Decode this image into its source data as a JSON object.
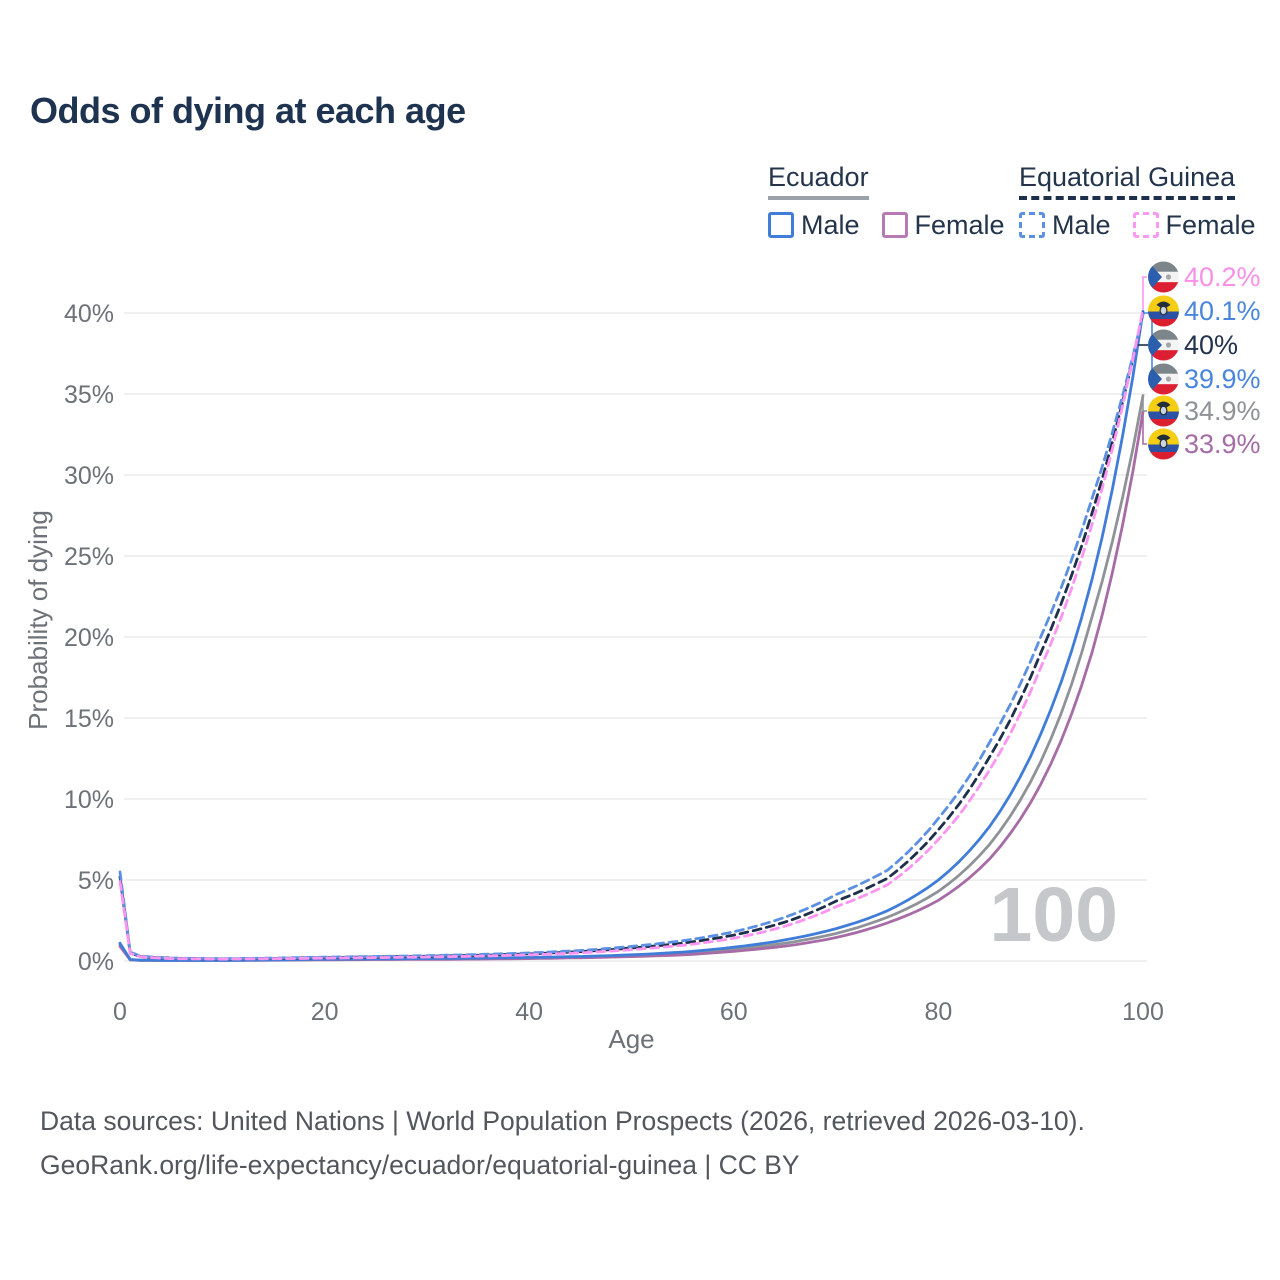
{
  "title": "Odds of dying at each age",
  "legend": {
    "groups": [
      {
        "label": "Ecuador",
        "line_style": "solid",
        "underline_color": "#9aa1a8",
        "items": [
          {
            "label": "Male",
            "color": "#3f7dd8"
          },
          {
            "label": "Female",
            "color": "#b77ab5"
          }
        ]
      },
      {
        "label": "Equatorial Guinea",
        "line_style": "dashed",
        "underline_color": "#1e2f49",
        "items": [
          {
            "label": "Male",
            "color": "#5c90e2"
          },
          {
            "label": "Female",
            "color": "#fc9af2"
          }
        ]
      }
    ]
  },
  "chart_data": {
    "type": "line",
    "title": "Odds of dying at each age",
    "xlabel": "Age",
    "ylabel": "Probability of dying",
    "xlim": [
      0,
      100
    ],
    "ylim_pct": [
      0,
      40
    ],
    "xticks": [
      0,
      20,
      40,
      60,
      80,
      100
    ],
    "yticks_pct": [
      0,
      5,
      10,
      15,
      20,
      25,
      30,
      35,
      40
    ],
    "grid": "horizontal-only",
    "watermark": "100",
    "legend_position": "top-right",
    "ages": [
      0,
      1,
      2,
      5,
      10,
      15,
      20,
      25,
      30,
      35,
      40,
      45,
      50,
      55,
      60,
      65,
      70,
      75,
      80,
      85,
      90,
      95,
      100
    ],
    "series": [
      {
        "id": "ecuador-all",
        "name": "Ecuador",
        "country": "Ecuador",
        "sex": "Both",
        "color": "#8f9397",
        "dash": false,
        "flag": "ecuador",
        "end_label": "34.9%",
        "label_color": "#8f9397",
        "label_row": 4,
        "values_pct": [
          1.0,
          0.08,
          0.045,
          0.035,
          0.035,
          0.06,
          0.09,
          0.11,
          0.13,
          0.15,
          0.19,
          0.24,
          0.33,
          0.47,
          0.72,
          1.1,
          1.7,
          2.7,
          4.3,
          7.2,
          12.3,
          21.2,
          34.9
        ]
      },
      {
        "id": "ecuador-female",
        "name": "Ecuador Female",
        "country": "Ecuador",
        "sex": "Female",
        "color": "#a76ba6",
        "dash": false,
        "flag": "ecuador",
        "end_label": "33.9%",
        "label_color": "#a56ca5",
        "label_row": 5,
        "values_pct": [
          0.9,
          0.07,
          0.04,
          0.03,
          0.03,
          0.05,
          0.07,
          0.09,
          0.1,
          0.12,
          0.15,
          0.2,
          0.27,
          0.38,
          0.6,
          0.92,
          1.45,
          2.35,
          3.75,
          6.3,
          10.9,
          19.0,
          33.9
        ]
      },
      {
        "id": "ecuador-male",
        "name": "Ecuador Male",
        "country": "Ecuador",
        "sex": "Male",
        "color": "#3f7dd8",
        "dash": false,
        "flag": "ecuador",
        "end_label": "40.1%",
        "label_color": "#4a86dc",
        "label_row": 1,
        "values_pct": [
          1.1,
          0.09,
          0.05,
          0.04,
          0.04,
          0.07,
          0.11,
          0.13,
          0.15,
          0.18,
          0.22,
          0.28,
          0.38,
          0.55,
          0.85,
          1.3,
          2.0,
          3.1,
          5.0,
          8.3,
          14.0,
          23.5,
          40.1
        ]
      },
      {
        "id": "equatorial-guinea-all",
        "name": "Equatorial Guinea",
        "country": "Equatorial Guinea",
        "sex": "Both",
        "color": "#1e2f49",
        "dash": true,
        "flag": "equatorial-guinea",
        "end_label": "40%",
        "label_color": "#22334d",
        "label_row": 2,
        "values_pct": [
          5.2,
          0.5,
          0.28,
          0.17,
          0.13,
          0.16,
          0.21,
          0.25,
          0.29,
          0.35,
          0.44,
          0.58,
          0.8,
          1.1,
          1.6,
          2.4,
          3.7,
          5.1,
          8.1,
          12.6,
          19.0,
          27.6,
          40.0
        ]
      },
      {
        "id": "equatorial-guinea-male",
        "name": "Equatorial Guinea Male",
        "country": "Equatorial Guinea",
        "sex": "Male",
        "color": "#5c90e2",
        "dash": true,
        "flag": "equatorial-guinea",
        "end_label": "39.9%",
        "label_color": "#4a86dc",
        "label_row": 3,
        "values_pct": [
          5.5,
          0.55,
          0.3,
          0.18,
          0.14,
          0.18,
          0.24,
          0.28,
          0.33,
          0.4,
          0.5,
          0.65,
          0.9,
          1.25,
          1.8,
          2.7,
          4.1,
          5.6,
          8.8,
          13.5,
          20.0,
          28.5,
          39.9
        ]
      },
      {
        "id": "equatorial-guinea-female",
        "name": "Equatorial Guinea Female",
        "country": "Equatorial Guinea",
        "sex": "Female",
        "color": "#fc95f1",
        "dash": true,
        "flag": "equatorial-guinea",
        "end_label": "40.2%",
        "label_color": "#fa8fe8",
        "label_row": 0,
        "values_pct": [
          4.9,
          0.46,
          0.26,
          0.15,
          0.12,
          0.14,
          0.18,
          0.21,
          0.25,
          0.3,
          0.38,
          0.5,
          0.7,
          0.97,
          1.4,
          2.15,
          3.35,
          4.7,
          7.5,
          11.8,
          18.1,
          26.9,
          40.2
        ]
      }
    ],
    "flag_colors": {
      "ecuador": {
        "yellow": "#f5cd13",
        "blue": "#2b52a4",
        "red": "#dc1f2e",
        "emblem": "#232e3b",
        "shield": "#c9d4e0"
      },
      "equatorial-guinea": {
        "green": "#7c858a",
        "white": "#f4f4f4",
        "red": "#dc1f32",
        "triangle": "#2b5fae",
        "emblem": "#a3a8a6"
      }
    },
    "axis_text_color": "#6d7278",
    "gridline_color": "#ececec",
    "watermark_color": "#c5c7ca"
  },
  "footer": {
    "line1": "Data sources: United Nations | World Population Prospects (2026, retrieved 2026-03-10).",
    "line2": "GeoRank.org/life-expectancy/ecuador/equatorial-guinea | CC BY"
  }
}
